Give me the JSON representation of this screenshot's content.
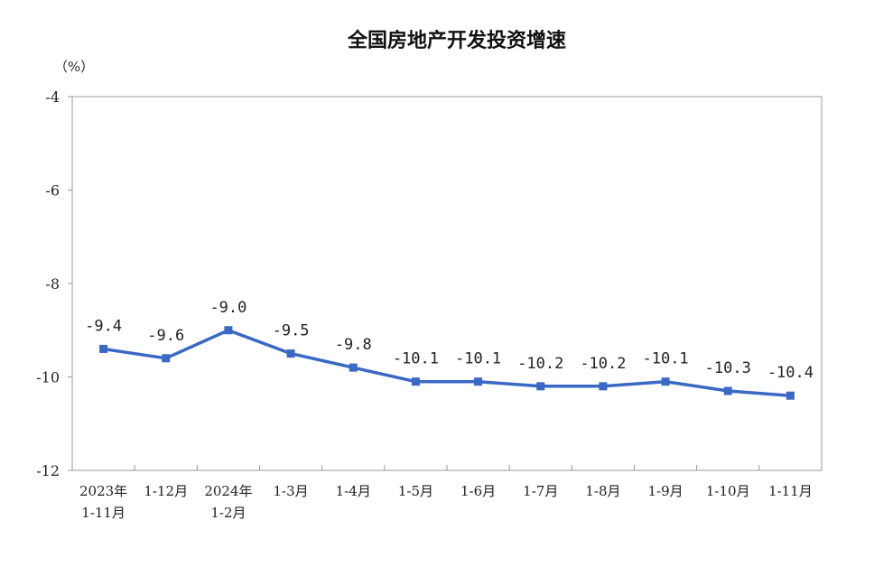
{
  "chart_data": {
    "type": "line",
    "title": "全国房地产开发投资增速",
    "ylabel": "（%）",
    "xlabel": "",
    "ylim": [
      -12,
      -4
    ],
    "yticks": [
      "-4",
      "-6",
      "-8",
      "-10",
      "-12"
    ],
    "ytick_values": [
      -4,
      -6,
      -8,
      -10,
      -12
    ],
    "categories": [
      [
        "2023年",
        "1-11月"
      ],
      [
        "1-12月"
      ],
      [
        "2024年",
        "1-2月"
      ],
      [
        "1-3月"
      ],
      [
        "1-4月"
      ],
      [
        "1-5月"
      ],
      [
        "1-6月"
      ],
      [
        "1-7月"
      ],
      [
        "1-8月"
      ],
      [
        "1-9月"
      ],
      [
        "1-10月"
      ],
      [
        "1-11月"
      ]
    ],
    "values": [
      -9.4,
      -9.6,
      -9.0,
      -9.5,
      -9.8,
      -10.1,
      -10.1,
      -10.2,
      -10.2,
      -10.1,
      -10.3,
      -10.4
    ],
    "data_labels": [
      "-9.4",
      "-9.6",
      "-9.0",
      "-9.5",
      "-9.8",
      "-10.1",
      "-10.1",
      "-10.2",
      "-10.2",
      "-10.1",
      "-10.3",
      "-10.4"
    ],
    "color": "#3a68c5",
    "grid": false,
    "legend": "none"
  }
}
